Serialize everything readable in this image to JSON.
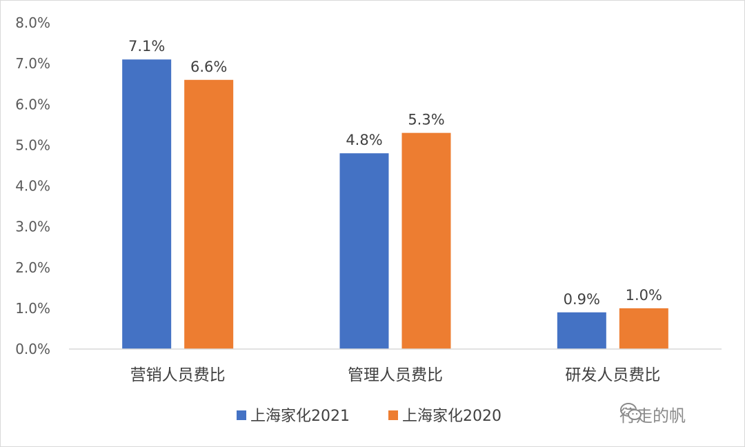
{
  "chart_data": {
    "type": "bar",
    "categories": [
      "营销人员费比",
      "管理人员费比",
      "研发人员费比"
    ],
    "series": [
      {
        "name": "上海家化2021",
        "values": [
          7.1,
          4.8,
          0.9
        ],
        "labels": [
          "7.1%",
          "4.8%",
          "0.9%"
        ],
        "color": "#4472C4"
      },
      {
        "name": "上海家化2020",
        "values": [
          6.6,
          5.3,
          1.0
        ],
        "labels": [
          "6.6%",
          "5.3%",
          "1.0%"
        ],
        "color": "#ED7D31"
      }
    ],
    "ylim": [
      0,
      8
    ],
    "yticks": [
      "0.0%",
      "1.0%",
      "2.0%",
      "3.0%",
      "4.0%",
      "5.0%",
      "6.0%",
      "7.0%",
      "8.0%"
    ],
    "grid": false,
    "legend_position": "bottom"
  },
  "watermark": {
    "text": "行走的帆",
    "icon": "wechat-icon"
  }
}
